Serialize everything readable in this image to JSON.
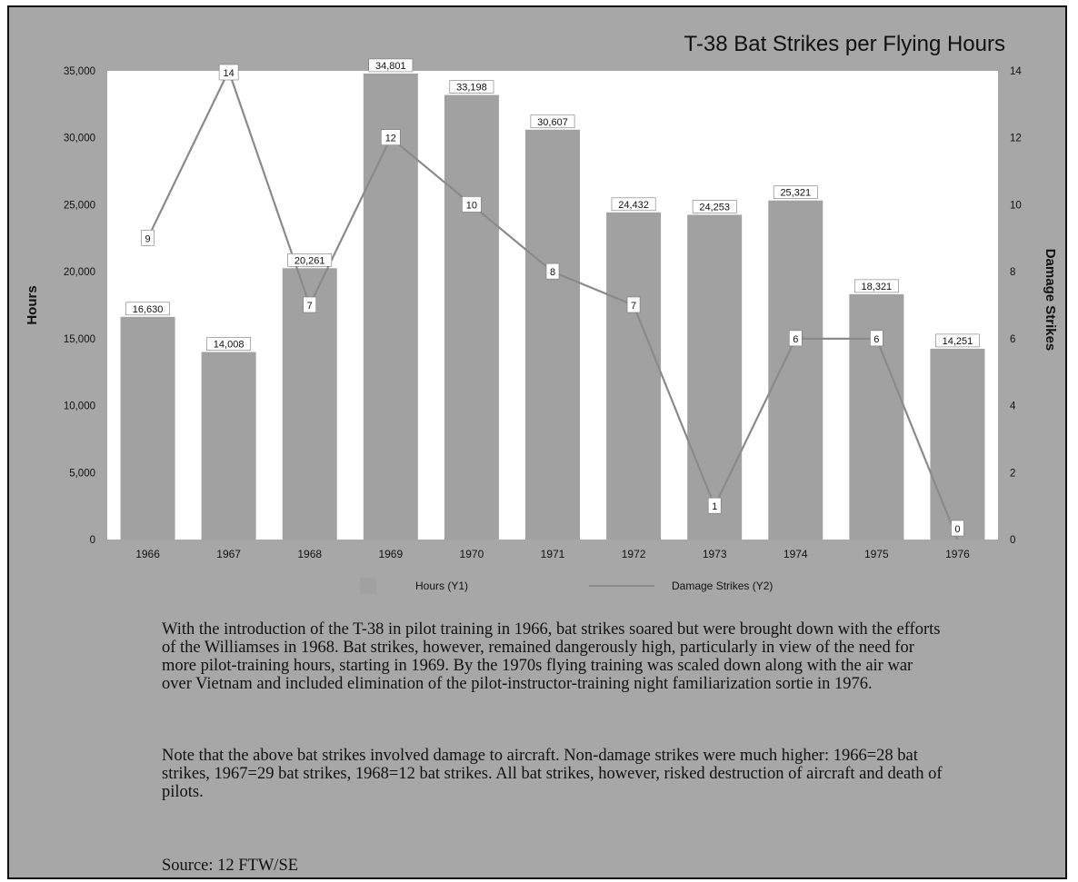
{
  "chart_data": {
    "type": "bar",
    "title": "T-38 Bat Strikes per Flying Hours",
    "categories": [
      "1966",
      "1967",
      "1968",
      "1969",
      "1970",
      "1971",
      "1972",
      "1973",
      "1974",
      "1975",
      "1976"
    ],
    "series": [
      {
        "name": "Hours (Y1)",
        "type": "bar",
        "axis": "y1",
        "values": [
          16630,
          14008,
          20261,
          34801,
          33198,
          30607,
          24432,
          24253,
          25321,
          18321,
          14251
        ],
        "labels": [
          "16,630",
          "14,008",
          "20,261",
          "34,801",
          "33,198",
          "30,607",
          "24,432",
          "24,253",
          "25,321",
          "18,321",
          "14,251"
        ]
      },
      {
        "name": "Damage Strikes (Y2)",
        "type": "line",
        "axis": "y2",
        "values": [
          9,
          14,
          7,
          12,
          10,
          8,
          7,
          1,
          6,
          6,
          0
        ],
        "labels": [
          "9",
          "14",
          "7",
          "12",
          "10",
          "8",
          "7",
          "1",
          "6",
          "6",
          "0"
        ]
      }
    ],
    "ylabel": "Hours",
    "y2label": "Damage Strikes",
    "ylim": [
      0,
      35000
    ],
    "y2lim": [
      0,
      14
    ],
    "y_ticks": [
      "0",
      "5,000",
      "10,000",
      "15,000",
      "20,000",
      "25,000",
      "30,000",
      "35,000"
    ],
    "y2_ticks": [
      "0",
      "2",
      "4",
      "6",
      "8",
      "10",
      "12",
      "14"
    ],
    "legend_position": "bottom",
    "grid": false,
    "colors": {
      "bar": "#a1a1a1",
      "line": "#8a8a8a",
      "plot_bg": "#ffffff",
      "page_bg": "#a7a7a7"
    }
  },
  "text": {
    "paragraph1": "With the introduction of the T-38 in pilot training in 1966, bat strikes soared but were brought down with the efforts of the Williamses  in 1968.  Bat strikes, however, remained dangerously high, particularly in view of the need for more pilot-training hours, starting in 1969.  By the 1970s flying training was scaled down along with the air war over Vietnam and included elimination of the pilot-instructor-training night familiarization sortie in 1976.",
    "paragraph2": "Note that the above bat strikes involved damage to aircraft.  Non-damage strikes were much higher: 1966=28 bat strikes, 1967=29 bat strikes, 1968=12 bat strikes.  All bat strikes, however, risked destruction of aircraft and death of pilots.",
    "source": "Source: 12 FTW/SE"
  }
}
